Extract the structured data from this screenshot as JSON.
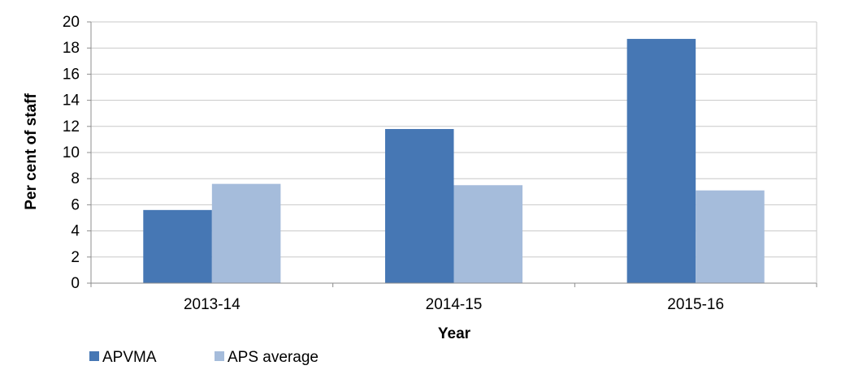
{
  "chart_data": {
    "type": "bar",
    "categories": [
      "2013-14",
      "2014-15",
      "2015-16"
    ],
    "series": [
      {
        "name": "APVMA",
        "values": [
          5.6,
          11.8,
          18.7
        ],
        "color": "#4677b4"
      },
      {
        "name": "APS average",
        "values": [
          7.6,
          7.5,
          7.1
        ],
        "color": "#a5bcdb"
      }
    ],
    "xlabel": "Year",
    "ylabel": "Per cent of staff",
    "ylim": [
      0,
      20
    ],
    "yticks": [
      0,
      2,
      4,
      6,
      8,
      10,
      12,
      14,
      16,
      18,
      20
    ],
    "grid": true,
    "legend_position": "bottom-left"
  }
}
